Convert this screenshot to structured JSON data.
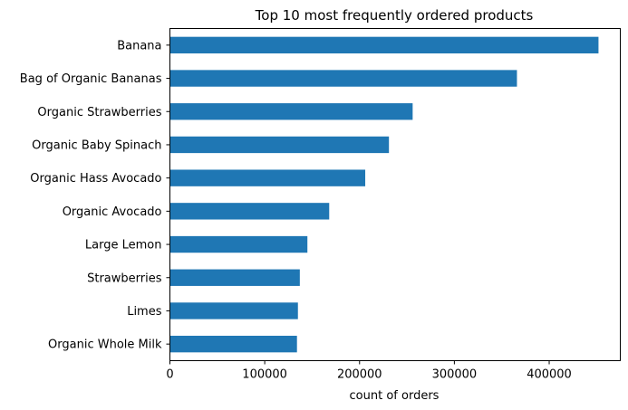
{
  "chart_data": {
    "type": "bar",
    "orientation": "horizontal",
    "title": "Top 10 most frequently ordered products",
    "xlabel": "count of orders",
    "ylabel": "",
    "categories": [
      "Banana",
      "Bag of Organic Bananas",
      "Organic Strawberries",
      "Organic Baby Spinach",
      "Organic Hass Avocado",
      "Organic Avocado",
      "Large Lemon",
      "Strawberries",
      "Limes",
      "Organic Whole Milk"
    ],
    "values": [
      452000,
      366000,
      256000,
      231000,
      206000,
      168000,
      145000,
      137000,
      135000,
      134000
    ],
    "xlim": [
      0,
      475000
    ],
    "xticks": [
      0,
      100000,
      200000,
      300000,
      400000
    ],
    "xtick_labels": [
      "0",
      "100000",
      "200000",
      "300000",
      "400000"
    ],
    "bar_color": "#1f77b4",
    "grid": false,
    "legend": false
  }
}
